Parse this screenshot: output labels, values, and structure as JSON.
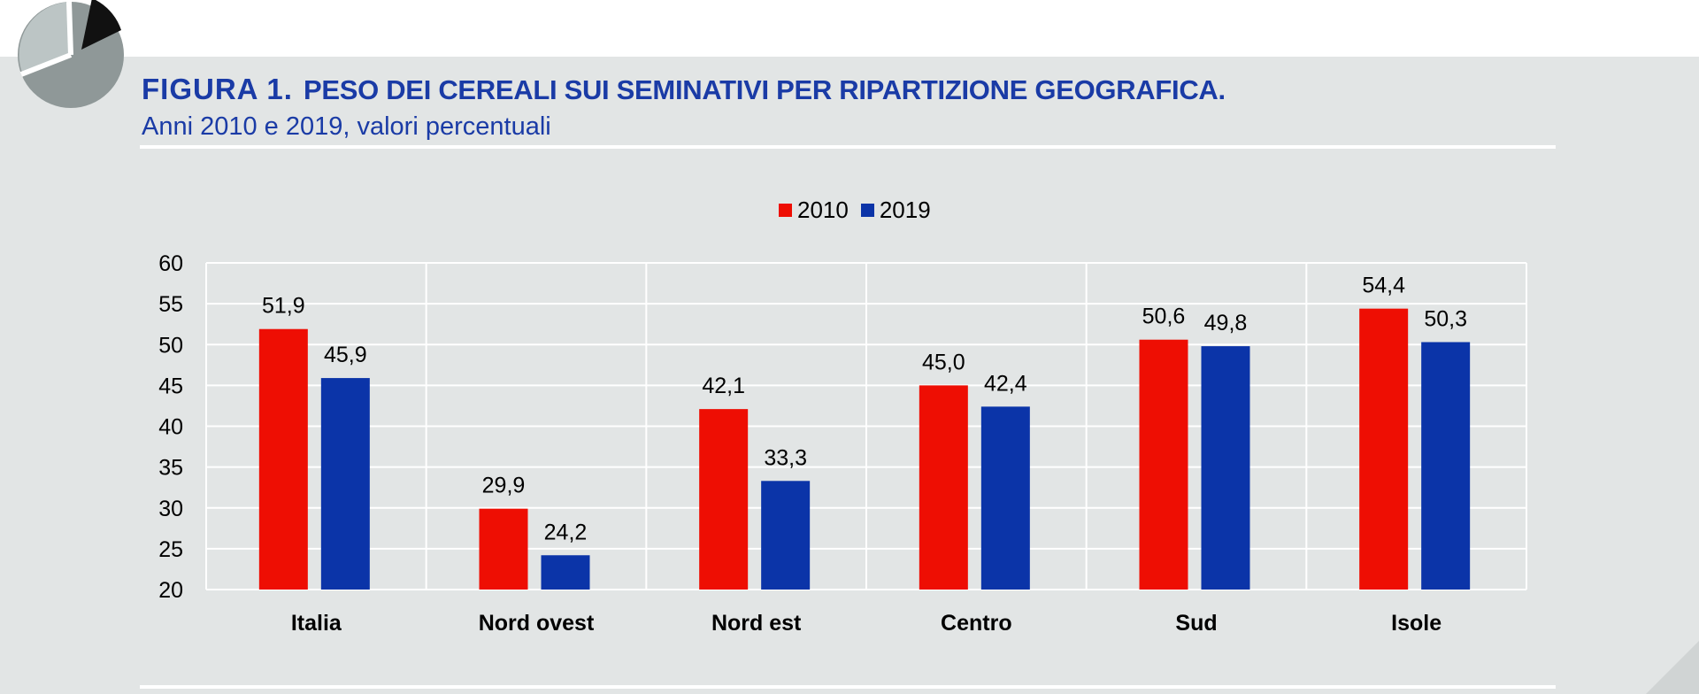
{
  "header": {
    "figure_label": "FIGURA 1.",
    "title": "PESO DEI CEREALI SUI SEMINATIVI PER RIPARTIZIONE GEOGRAFICA",
    "title_end": ".",
    "subtitle": "Anni 2010 e 2019, valori percentuali"
  },
  "colors": {
    "series_2010": "#ee0e03",
    "series_2019": "#0b34a8",
    "title": "#1a3ba6",
    "background": "#e2e5e5",
    "grid": "#ffffff"
  },
  "chart_data": {
    "type": "bar",
    "categories": [
      "Italia",
      "Nord ovest",
      "Nord est",
      "Centro",
      "Sud",
      "Isole"
    ],
    "series": [
      {
        "name": "2010",
        "values": [
          51.9,
          29.9,
          42.1,
          45.0,
          50.6,
          54.4
        ],
        "labels": [
          "51,9",
          "29,9",
          "42,1",
          "45,0",
          "50,6",
          "54,4"
        ]
      },
      {
        "name": "2019",
        "values": [
          45.9,
          24.2,
          33.3,
          42.4,
          49.8,
          50.3
        ],
        "labels": [
          "45,9",
          "24,2",
          "33,3",
          "42,4",
          "49,8",
          "50,3"
        ]
      }
    ],
    "ylim": [
      20,
      60
    ],
    "yticks": [
      20,
      25,
      30,
      35,
      40,
      45,
      50,
      55,
      60
    ],
    "grid": true,
    "legend": "top-center"
  }
}
